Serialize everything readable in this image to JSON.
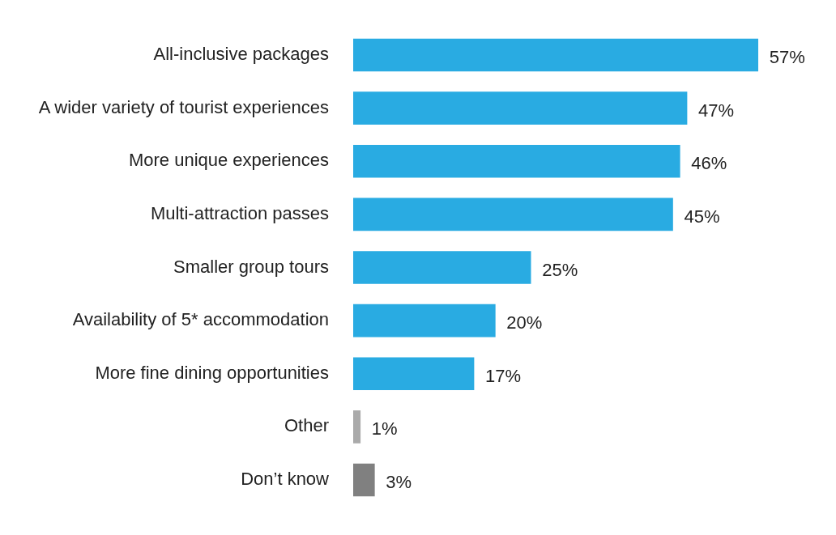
{
  "chart_data": {
    "type": "bar",
    "orientation": "horizontal",
    "categories": [
      "All-inclusive packages",
      "A wider variety of tourist experiences",
      "More unique experiences",
      "Multi-attraction passes",
      "Smaller group tours",
      "Availability of 5* accommodation",
      "More fine dining opportunities",
      "Other",
      "Don’t know"
    ],
    "values": [
      57,
      47,
      46,
      45,
      25,
      20,
      17,
      1,
      3
    ],
    "value_labels": [
      "57%",
      "47%",
      "46%",
      "45%",
      "25%",
      "20%",
      "17%",
      "1%",
      "3%"
    ],
    "colors": [
      "#29abe2",
      "#29abe2",
      "#29abe2",
      "#29abe2",
      "#29abe2",
      "#29abe2",
      "#29abe2",
      "#aaaaaa",
      "#808080"
    ],
    "tick_labels": "y",
    "legend": false
  }
}
